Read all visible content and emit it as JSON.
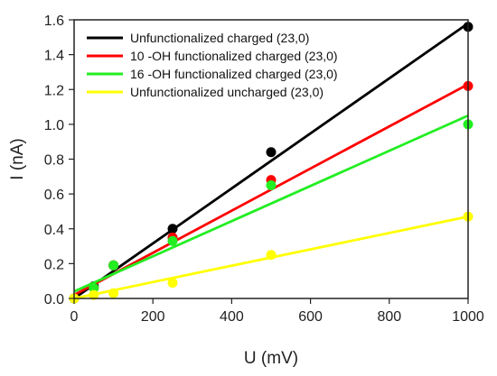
{
  "chart_data": {
    "type": "scatter",
    "xlabel": "U (mV)",
    "ylabel": "I (nA)",
    "xlim": [
      0,
      1000
    ],
    "ylim": [
      0,
      1.6
    ],
    "xticks": [
      0,
      200,
      400,
      600,
      800,
      1000
    ],
    "yticks": [
      0.0,
      0.2,
      0.4,
      0.6,
      0.8,
      1.0,
      1.2,
      1.4,
      1.6
    ],
    "xtick_labels": [
      "0",
      "200",
      "400",
      "600",
      "800",
      "1000"
    ],
    "ytick_labels": [
      "0.0",
      "0.2",
      "0.4",
      "0.6",
      "0.8",
      "1.0",
      "1.2",
      "1.4",
      "1.6"
    ],
    "grid": false,
    "legend_position": "top-left",
    "series": [
      {
        "name": "Unfunctionalized charged (23,0)",
        "color": "#000000",
        "x": [
          0,
          50,
          100,
          250,
          500,
          1000
        ],
        "y": [
          0.0,
          0.07,
          0.19,
          0.4,
          0.84,
          1.56
        ],
        "fit": [
          [
            0,
            0.0
          ],
          [
            1000,
            1.58
          ]
        ]
      },
      {
        "name": "10 -OH functionalized charged (23,0)",
        "color": "#ff0000",
        "x": [
          0,
          50,
          100,
          250,
          500,
          1000
        ],
        "y": [
          0.0,
          0.06,
          0.19,
          0.35,
          0.68,
          1.22
        ],
        "fit": [
          [
            0,
            0.02
          ],
          [
            1000,
            1.23
          ]
        ]
      },
      {
        "name": "16 -OH functionalized charged (23,0)",
        "color": "#22ee22",
        "x": [
          0,
          50,
          100,
          250,
          500,
          1000
        ],
        "y": [
          0.0,
          0.06,
          0.19,
          0.33,
          0.65,
          1.0
        ],
        "fit": [
          [
            0,
            0.04
          ],
          [
            1000,
            1.05
          ]
        ]
      },
      {
        "name": "Unfunctionalized uncharged (23,0)",
        "color": "#ffff00",
        "x": [
          0,
          50,
          100,
          250,
          500,
          1000
        ],
        "y": [
          0.0,
          0.02,
          0.03,
          0.09,
          0.25,
          0.47
        ],
        "fit": [
          [
            0,
            0.0
          ],
          [
            1000,
            0.47
          ]
        ]
      }
    ]
  }
}
